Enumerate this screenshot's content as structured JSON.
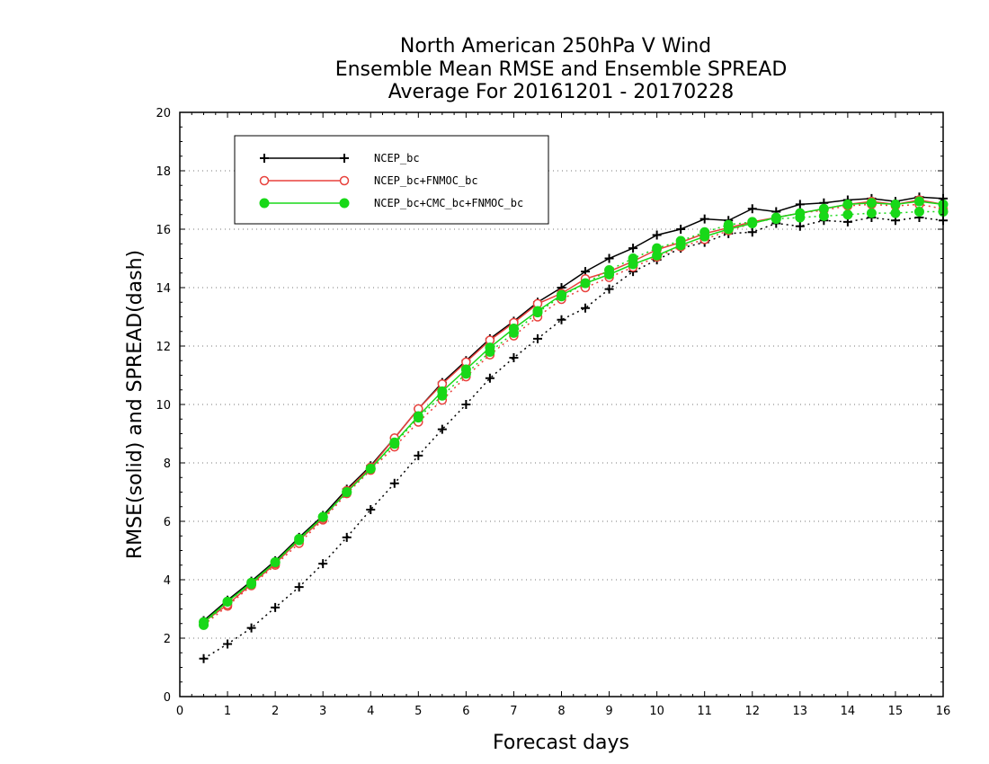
{
  "chart_data": {
    "type": "line",
    "title": [
      "North American 250hPa V Wind",
      "Ensemble Mean RMSE and Ensemble SPREAD",
      "Average For 20161201 - 20170228"
    ],
    "xlabel": "Forecast days",
    "ylabel": "RMSE(solid) and SPREAD(dash)",
    "xlim": [
      0,
      16
    ],
    "ylim": [
      0,
      20
    ],
    "xticks": [
      "0",
      "1",
      "2",
      "3",
      "4",
      "5",
      "6",
      "7",
      "8",
      "9",
      "10",
      "11",
      "12",
      "13",
      "14",
      "15",
      "16"
    ],
    "yticks": [
      "0",
      "2",
      "4",
      "6",
      "8",
      "10",
      "12",
      "14",
      "16",
      "18",
      "20"
    ],
    "grid": "horizontal dotted",
    "legend_position": "top-left",
    "x": [
      0.5,
      1,
      1.5,
      2,
      2.5,
      3,
      3.5,
      4,
      4.5,
      5,
      5.5,
      6,
      6.5,
      7,
      7.5,
      8,
      8.5,
      9,
      9.5,
      10,
      10.5,
      11,
      11.5,
      12,
      12.5,
      13,
      13.5,
      14,
      14.5,
      15,
      15.5,
      16
    ],
    "series": [
      {
        "name": "NCEP_bc",
        "color": "#000000",
        "marker": "plus",
        "rmse": [
          2.6,
          3.3,
          3.95,
          4.65,
          5.45,
          6.2,
          7.1,
          7.9,
          8.85,
          9.85,
          10.75,
          11.5,
          12.25,
          12.85,
          13.5,
          14.0,
          14.55,
          15.0,
          15.35,
          15.8,
          16.0,
          16.35,
          16.3,
          16.7,
          16.6,
          16.85,
          16.9,
          17.0,
          17.05,
          16.95,
          17.1,
          17.05
        ],
        "spread": [
          1.3,
          1.8,
          2.35,
          3.05,
          3.75,
          4.55,
          5.45,
          6.4,
          7.3,
          8.25,
          9.15,
          10.0,
          10.9,
          11.6,
          12.25,
          12.9,
          13.3,
          13.95,
          14.55,
          14.95,
          15.35,
          15.55,
          15.85,
          15.9,
          16.2,
          16.1,
          16.3,
          16.25,
          16.4,
          16.3,
          16.4,
          16.3
        ]
      },
      {
        "name": "NCEP_bc+FNMOC_bc",
        "color": "#e8413c",
        "marker": "open-circle",
        "rmse": [
          2.55,
          3.15,
          3.85,
          4.55,
          5.35,
          6.1,
          7.05,
          7.85,
          8.85,
          9.85,
          10.7,
          11.45,
          12.2,
          12.8,
          13.45,
          13.8,
          14.3,
          14.55,
          14.9,
          15.3,
          15.55,
          15.85,
          16.05,
          16.25,
          16.4,
          16.55,
          16.7,
          16.85,
          16.95,
          16.85,
          17.0,
          16.85
        ],
        "spread": [
          2.45,
          3.1,
          3.8,
          4.5,
          5.25,
          6.05,
          6.95,
          7.75,
          8.55,
          9.4,
          10.15,
          10.95,
          11.7,
          12.35,
          13.0,
          13.6,
          14.0,
          14.35,
          14.7,
          15.05,
          15.4,
          15.65,
          15.95,
          16.2,
          16.4,
          16.55,
          16.65,
          16.8,
          16.85,
          16.8,
          16.85,
          16.7
        ]
      },
      {
        "name": "NCEP_bc+CMC_bc+FNMOC_bc",
        "color": "#18d818",
        "marker": "filled-circle",
        "rmse": [
          2.55,
          3.25,
          3.9,
          4.6,
          5.4,
          6.15,
          7.0,
          7.8,
          8.7,
          9.6,
          10.45,
          11.2,
          11.95,
          12.6,
          13.2,
          13.75,
          14.15,
          14.45,
          14.8,
          15.1,
          15.45,
          15.75,
          16.0,
          16.2,
          16.4,
          16.55,
          16.7,
          16.85,
          16.9,
          16.85,
          16.95,
          16.85
        ],
        "spread": [
          2.45,
          3.25,
          3.85,
          4.6,
          5.35,
          6.15,
          7.0,
          7.8,
          8.65,
          9.55,
          10.3,
          11.05,
          11.8,
          12.45,
          13.15,
          13.7,
          14.15,
          14.6,
          15.0,
          15.35,
          15.6,
          15.9,
          16.15,
          16.25,
          16.35,
          16.4,
          16.45,
          16.5,
          16.55,
          16.55,
          16.6,
          16.6
        ]
      }
    ]
  }
}
